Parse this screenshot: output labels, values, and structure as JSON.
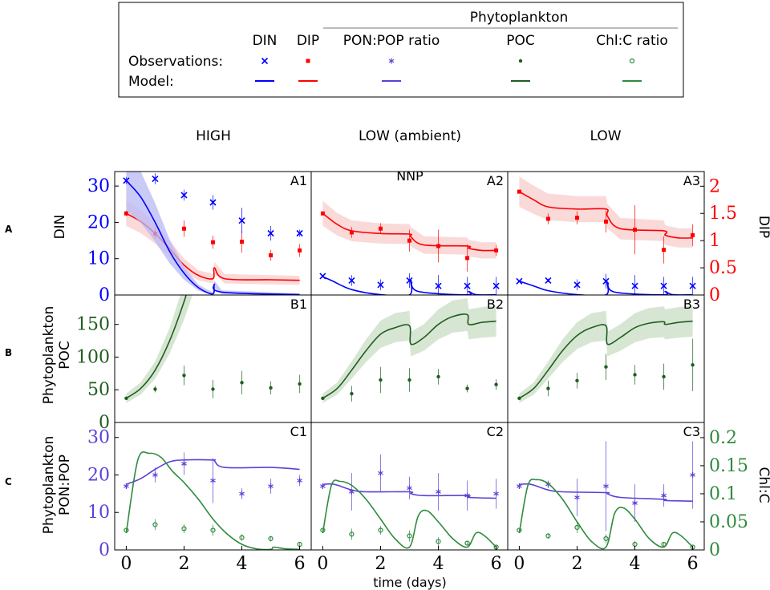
{
  "legend": {
    "group_header": "Phytoplankton",
    "columns": [
      "DIN",
      "DIP",
      "PON:POP ratio",
      "POC",
      "Chl:C ratio"
    ],
    "row_labels": [
      "Observations:",
      "Model:"
    ]
  },
  "column_headers": [
    "HIGH",
    "LOW (ambient)",
    "LOW"
  ],
  "row_letters": [
    "A",
    "B",
    "C"
  ],
  "y_labels": {
    "A_left": "DIN",
    "A_right": "DIP",
    "B_left_1": "Phytoplankton",
    "B_left_2": "POC",
    "C_left_1": "Phytoplankton",
    "C_left_2": "PON:POP",
    "C_right": "Chl:C"
  },
  "xlabel": "time (days)",
  "annotation": "NNP",
  "panel_labels": [
    "A1",
    "A2",
    "A3",
    "B1",
    "B2",
    "B3",
    "C1",
    "C2",
    "C3"
  ],
  "colors": {
    "din": "#0000ff",
    "dip": "#ff0000",
    "ponpop": "#5a42d8",
    "poc": "#1f5e1f",
    "chl": "#2e8b3e",
    "din_band": "#b8b8f5",
    "dip_band": "#f8cccc",
    "poc_band": "#c9dec4"
  },
  "chart_data": {
    "type": "line",
    "x": [
      0,
      1,
      2,
      3,
      4,
      5,
      6
    ],
    "xlim": [
      -0.4,
      6.4
    ],
    "x_ticks": [
      "0",
      "2",
      "4",
      "6"
    ],
    "rows": {
      "A": {
        "left": {
          "name": "DIN",
          "ylim": [
            0,
            34
          ],
          "ticks": [
            "0",
            "10",
            "20",
            "30"
          ]
        },
        "right": {
          "name": "DIP",
          "ylim": [
            0,
            2.27
          ],
          "ticks": [
            "0",
            "0.5",
            "1",
            "1.5",
            "2"
          ]
        }
      },
      "B": {
        "left": {
          "name": "Phytoplankton POC",
          "ylim": [
            0,
            195
          ],
          "ticks": [
            "0",
            "50",
            "100",
            "150"
          ]
        }
      },
      "C": {
        "left": {
          "name": "Phytoplankton PON:POP",
          "ylim": [
            0,
            34
          ],
          "ticks": [
            "0",
            "10",
            "20",
            "30"
          ]
        },
        "right": {
          "name": "Chl:C",
          "ylim": [
            0,
            0.227
          ],
          "ticks": [
            "0",
            "0.05",
            "0.1",
            "0.15",
            "0.2"
          ]
        }
      }
    },
    "panels": [
      {
        "id": "A1",
        "treatment": "HIGH",
        "din_obs": [
          31.5,
          32,
          27.5,
          25.5,
          20.5,
          17,
          17
        ],
        "din_err": [
          1,
          1.5,
          1.5,
          2,
          3.5,
          2,
          1
        ],
        "dip_obs": [
          1.5,
          1.13,
          1.22,
          0.97,
          0.98,
          0.73,
          0.82
        ],
        "dip_err": [
          0.05,
          0.1,
          0.15,
          0.12,
          0.2,
          0.1,
          0.12
        ],
        "din_model": [
          [
            0,
            31.5
          ],
          [
            0.5,
            27
          ],
          [
            1,
            20
          ],
          [
            1.5,
            12
          ],
          [
            2,
            6
          ],
          [
            2.5,
            2
          ],
          [
            3,
            0.3
          ],
          [
            3.05,
            3
          ],
          [
            3.3,
            0.8
          ],
          [
            6,
            0.1
          ]
        ],
        "dip_model": [
          [
            0,
            1.5
          ],
          [
            0.5,
            1.35
          ],
          [
            1,
            1.13
          ],
          [
            1.5,
            0.85
          ],
          [
            2,
            0.55
          ],
          [
            2.5,
            0.36
          ],
          [
            3,
            0.3
          ],
          [
            3.05,
            0.5
          ],
          [
            3.4,
            0.3
          ],
          [
            5,
            0.28
          ],
          [
            6,
            0.27
          ]
        ]
      },
      {
        "id": "A2",
        "treatment": "LOW (ambient)",
        "din_obs": [
          5.2,
          4,
          2.8,
          4,
          2.5,
          2.5,
          2.5
        ],
        "din_err": [
          0.3,
          1.5,
          1.5,
          2,
          3,
          2.5,
          2.5
        ],
        "dip_obs": [
          1.5,
          1.15,
          1.22,
          1,
          0.9,
          0.68,
          0.82
        ],
        "dip_err": [
          0.03,
          0.1,
          0.1,
          0.2,
          0.3,
          0.25,
          0.1
        ],
        "din_model": [
          [
            0,
            5
          ],
          [
            0.3,
            4
          ],
          [
            1,
            1.5
          ],
          [
            2,
            0.1
          ],
          [
            3,
            0.05
          ],
          [
            3.05,
            4
          ],
          [
            3.3,
            1
          ],
          [
            5,
            0.05
          ],
          [
            5.05,
            1
          ],
          [
            5.3,
            0.1
          ],
          [
            6,
            0.05
          ]
        ],
        "dip_model": [
          [
            0,
            1.5
          ],
          [
            0.5,
            1.3
          ],
          [
            1,
            1.18
          ],
          [
            2,
            1.13
          ],
          [
            3,
            1.12
          ],
          [
            3.05,
            1.07
          ],
          [
            3.5,
            0.92
          ],
          [
            5,
            0.9
          ],
          [
            5.05,
            0.86
          ],
          [
            5.5,
            0.82
          ],
          [
            6,
            0.82
          ]
        ]
      },
      {
        "id": "A3",
        "treatment": "LOW",
        "din_obs": [
          3.8,
          4,
          2.8,
          3.8,
          2.5,
          2.5,
          2.5
        ],
        "din_err": [
          0.3,
          0.5,
          1.5,
          2,
          3,
          2.5,
          2.5
        ],
        "dip_obs": [
          1.9,
          1.4,
          1.42,
          1.35,
          1.2,
          0.83,
          1.1
        ],
        "dip_err": [
          0.03,
          0.1,
          0.12,
          0.2,
          0.45,
          0.25,
          0.2
        ],
        "din_model": [
          [
            0,
            3.8
          ],
          [
            0.5,
            2.5
          ],
          [
            1,
            1.2
          ],
          [
            2,
            0.1
          ],
          [
            3,
            0.05
          ],
          [
            3.05,
            3.5
          ],
          [
            3.3,
            0.8
          ],
          [
            5,
            0.05
          ],
          [
            5.05,
            1
          ],
          [
            5.3,
            0.1
          ],
          [
            6,
            0.05
          ]
        ],
        "dip_model": [
          [
            0,
            1.9
          ],
          [
            0.5,
            1.75
          ],
          [
            1,
            1.62
          ],
          [
            2,
            1.58
          ],
          [
            3,
            1.58
          ],
          [
            3.05,
            1.45
          ],
          [
            3.5,
            1.22
          ],
          [
            5,
            1.18
          ],
          [
            5.05,
            1.1
          ],
          [
            5.5,
            1.05
          ],
          [
            6,
            1.05
          ]
        ]
      },
      {
        "id": "B1",
        "treatment": "HIGH",
        "poc_obs": [
          37,
          51,
          72,
          51,
          61,
          53,
          59
        ],
        "poc_err": [
          2,
          5,
          15,
          14,
          18,
          10,
          14
        ],
        "poc_model": [
          [
            0,
            37
          ],
          [
            0.5,
            52
          ],
          [
            1,
            80
          ],
          [
            1.5,
            125
          ],
          [
            2,
            185
          ],
          [
            2.3,
            230
          ]
        ]
      },
      {
        "id": "B2",
        "treatment": "LOW (ambient)",
        "poc_obs": [
          37,
          44,
          65,
          65,
          70,
          52,
          58
        ],
        "poc_err": [
          2,
          12,
          20,
          18,
          12,
          6,
          8
        ],
        "poc_model": [
          [
            0,
            37
          ],
          [
            0.5,
            52
          ],
          [
            1,
            80
          ],
          [
            1.5,
            110
          ],
          [
            2,
            135
          ],
          [
            2.5,
            145
          ],
          [
            3,
            148
          ],
          [
            3.05,
            120
          ],
          [
            3.5,
            130
          ],
          [
            4,
            150
          ],
          [
            4.5,
            162
          ],
          [
            5,
            165
          ],
          [
            5.05,
            150
          ],
          [
            5.5,
            153
          ],
          [
            6,
            155
          ]
        ]
      },
      {
        "id": "B3",
        "treatment": "LOW",
        "poc_obs": [
          37,
          52,
          64,
          85,
          73,
          70,
          88
        ],
        "poc_err": [
          2,
          12,
          12,
          20,
          15,
          20,
          40
        ],
        "poc_model": [
          [
            0,
            37
          ],
          [
            0.5,
            52
          ],
          [
            1,
            80
          ],
          [
            1.5,
            110
          ],
          [
            2,
            133
          ],
          [
            2.5,
            145
          ],
          [
            3,
            148
          ],
          [
            3.05,
            120
          ],
          [
            3.5,
            130
          ],
          [
            4,
            145
          ],
          [
            4.5,
            152
          ],
          [
            5,
            154
          ],
          [
            5.05,
            150
          ],
          [
            5.5,
            153
          ],
          [
            6,
            155
          ]
        ]
      },
      {
        "id": "C1",
        "treatment": "HIGH",
        "ponpop_obs": [
          17,
          20,
          23,
          18.5,
          15,
          17,
          18.5
        ],
        "ponpop_err": [
          0.5,
          2,
          3,
          6,
          1.5,
          2,
          1.5
        ],
        "chl_obs": [
          0.035,
          0.045,
          0.038,
          0.035,
          0.022,
          0.02,
          0.01
        ],
        "chl_err": [
          0.002,
          0.01,
          0.008,
          0.01,
          0.006,
          0.005,
          0.004
        ],
        "ponpop_model": [
          [
            0,
            17.5
          ],
          [
            0.5,
            19
          ],
          [
            1,
            21.5
          ],
          [
            1.5,
            23.5
          ],
          [
            2,
            24
          ],
          [
            3,
            24
          ],
          [
            3.05,
            23.8
          ],
          [
            3.4,
            22
          ],
          [
            5,
            22
          ],
          [
            6,
            21.5
          ]
        ],
        "chl_model": [
          [
            0,
            0.03
          ],
          [
            0.4,
            0.16
          ],
          [
            0.8,
            0.172
          ],
          [
            1.2,
            0.165
          ],
          [
            1.6,
            0.14
          ],
          [
            2,
            0.12
          ],
          [
            2.5,
            0.09
          ],
          [
            3,
            0.055
          ],
          [
            3.5,
            0.028
          ],
          [
            4,
            0.01
          ],
          [
            4.5,
            0.002
          ],
          [
            5,
            0.001
          ],
          [
            5.1,
            0.005
          ],
          [
            5.5,
            0.002
          ],
          [
            6,
            0.001
          ]
        ]
      },
      {
        "id": "C2",
        "treatment": "LOW (ambient)",
        "ponpop_obs": [
          17,
          15.5,
          20.5,
          16.5,
          15.5,
          14.5,
          15
        ],
        "ponpop_err": [
          0.3,
          5,
          5,
          3,
          5,
          4,
          4
        ],
        "chl_obs": [
          0.035,
          0.028,
          0.035,
          0.025,
          0.015,
          0.012,
          0.005
        ],
        "chl_err": [
          0.002,
          0.01,
          0.008,
          0.01,
          0.008,
          0.004,
          0.002
        ],
        "ponpop_model": [
          [
            0,
            17.5
          ],
          [
            0.4,
            17.5
          ],
          [
            1,
            16
          ],
          [
            1.5,
            15.5
          ],
          [
            3,
            15.5
          ],
          [
            3.05,
            15
          ],
          [
            3.5,
            14.5
          ],
          [
            5,
            14.5
          ],
          [
            5.05,
            14
          ],
          [
            6,
            13.8
          ]
        ],
        "chl_model": [
          [
            0,
            0.03
          ],
          [
            0.3,
            0.115
          ],
          [
            0.6,
            0.122
          ],
          [
            1,
            0.115
          ],
          [
            1.5,
            0.09
          ],
          [
            2,
            0.055
          ],
          [
            2.5,
            0.02
          ],
          [
            3,
            0.005
          ],
          [
            3.3,
            0.06
          ],
          [
            3.6,
            0.07
          ],
          [
            4,
            0.05
          ],
          [
            4.5,
            0.02
          ],
          [
            5,
            0.005
          ],
          [
            5.3,
            0.03
          ],
          [
            5.6,
            0.025
          ],
          [
            6,
            0.005
          ]
        ]
      },
      {
        "id": "C3",
        "treatment": "LOW",
        "ponpop_obs": [
          17,
          17.5,
          14,
          17,
          12.5,
          14.5,
          20
        ],
        "ponpop_err": [
          0.3,
          1,
          5,
          12,
          5,
          3,
          9
        ],
        "chl_obs": [
          0.035,
          0.025,
          0.04,
          0.02,
          0.01,
          0.01,
          0.005
        ],
        "chl_err": [
          0.002,
          0.005,
          0.01,
          0.008,
          0.006,
          0.004,
          0.002
        ],
        "ponpop_model": [
          [
            0,
            17.5
          ],
          [
            0.4,
            17.5
          ],
          [
            1,
            16
          ],
          [
            1.5,
            15.5
          ],
          [
            3,
            15.3
          ],
          [
            3.05,
            15
          ],
          [
            3.5,
            14
          ],
          [
            5,
            13.5
          ],
          [
            5.05,
            13.2
          ],
          [
            6,
            13
          ]
        ],
        "chl_model": [
          [
            0,
            0.03
          ],
          [
            0.3,
            0.115
          ],
          [
            0.6,
            0.125
          ],
          [
            1,
            0.118
          ],
          [
            1.5,
            0.09
          ],
          [
            2,
            0.05
          ],
          [
            2.5,
            0.015
          ],
          [
            3,
            0.005
          ],
          [
            3.3,
            0.065
          ],
          [
            3.6,
            0.075
          ],
          [
            4,
            0.055
          ],
          [
            4.5,
            0.02
          ],
          [
            5,
            0.005
          ],
          [
            5.3,
            0.03
          ],
          [
            5.6,
            0.025
          ],
          [
            6,
            0.005
          ]
        ]
      }
    ]
  }
}
